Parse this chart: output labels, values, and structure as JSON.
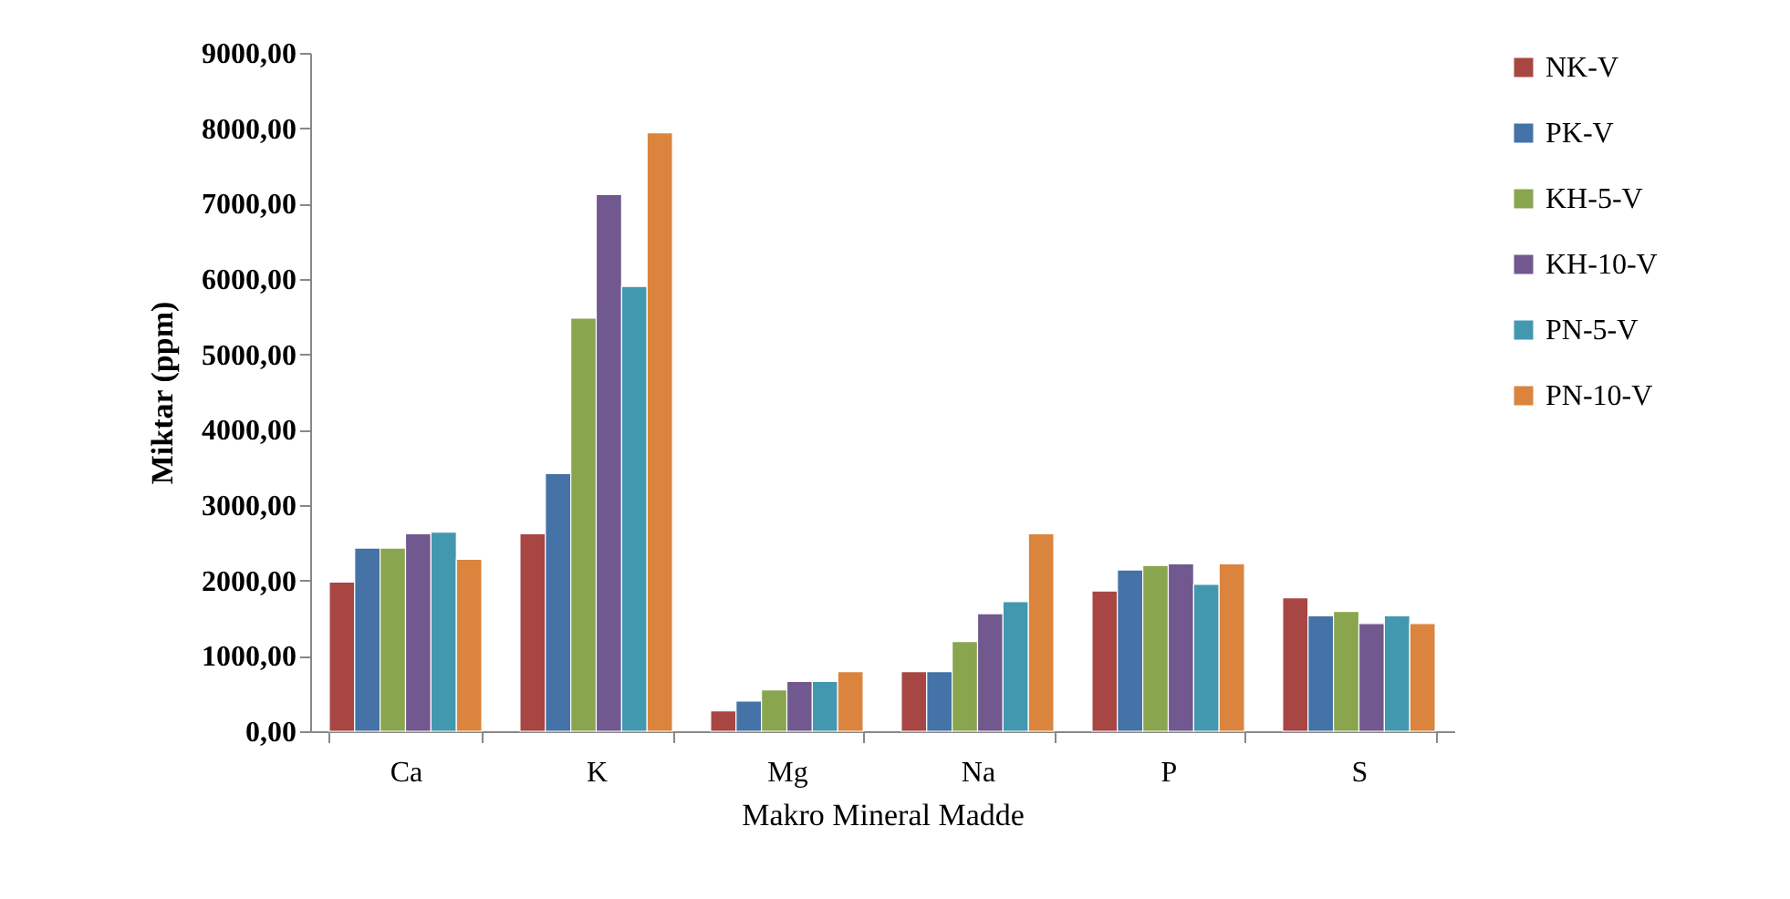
{
  "chart_data": {
    "type": "bar",
    "xlabel": "Makro Mineral Madde",
    "ylabel": "Miktar (ppm)",
    "categories": [
      "Ca",
      "K",
      "Mg",
      "Na",
      "P",
      "S"
    ],
    "series": [
      {
        "name": "NK-V",
        "color": "#a84644",
        "values": [
          1980,
          2620,
          270,
          790,
          1860,
          1770
        ]
      },
      {
        "name": "PK-V",
        "color": "#4572a7",
        "values": [
          2430,
          3420,
          400,
          790,
          2140,
          1530
        ]
      },
      {
        "name": "KH-5-V",
        "color": "#89a54e",
        "values": [
          2430,
          5480,
          550,
          1190,
          2200,
          1590
        ]
      },
      {
        "name": "KH-10-V",
        "color": "#71588f",
        "values": [
          2620,
          7120,
          660,
          1560,
          2220,
          1430
        ]
      },
      {
        "name": "PN-5-V",
        "color": "#4198af",
        "values": [
          2640,
          5900,
          660,
          1720,
          1950,
          1530
        ]
      },
      {
        "name": "PN-10-V",
        "color": "#db843d",
        "values": [
          2280,
          7940,
          790,
          2620,
          2220,
          1430
        ]
      }
    ],
    "ylim": [
      0,
      9000
    ],
    "yticks": [
      {
        "value": 0,
        "label": "0,00"
      },
      {
        "value": 1000,
        "label": "1000,00"
      },
      {
        "value": 2000,
        "label": "2000,00"
      },
      {
        "value": 3000,
        "label": "3000,00"
      },
      {
        "value": 4000,
        "label": "4000,00"
      },
      {
        "value": 5000,
        "label": "5000,00"
      },
      {
        "value": 6000,
        "label": "6000,00"
      },
      {
        "value": 7000,
        "label": "7000,00"
      },
      {
        "value": 8000,
        "label": "8000,00"
      },
      {
        "value": 9000,
        "label": "9000,00"
      }
    ],
    "grid": false,
    "legend": "right"
  }
}
